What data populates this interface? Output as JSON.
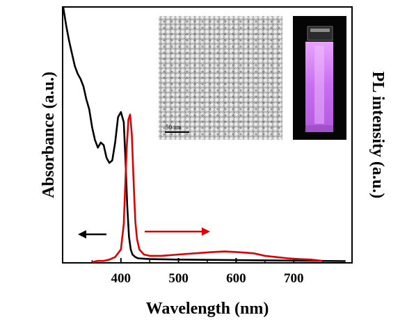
{
  "chart_data": {
    "type": "line",
    "xlabel": "Wavelength (nm)",
    "ylabel_left": "Absorbance (a.u.)",
    "ylabel_right": "PL intensity (a.u.)",
    "xlim": [
      300,
      800
    ],
    "ylim": [
      0,
      1
    ],
    "x_ticks": [
      400,
      500,
      600,
      700
    ],
    "y_ticks_labeled": false,
    "grid": false,
    "series": [
      {
        "color": "#000000",
        "axis": "left",
        "points": [
          [
            300,
            1.0
          ],
          [
            305,
            0.93
          ],
          [
            310,
            0.87
          ],
          [
            315,
            0.82
          ],
          [
            320,
            0.77
          ],
          [
            325,
            0.74
          ],
          [
            330,
            0.72
          ],
          [
            335,
            0.69
          ],
          [
            340,
            0.64
          ],
          [
            345,
            0.6
          ],
          [
            350,
            0.53
          ],
          [
            355,
            0.48
          ],
          [
            360,
            0.45
          ],
          [
            365,
            0.47
          ],
          [
            370,
            0.46
          ],
          [
            375,
            0.41
          ],
          [
            380,
            0.39
          ],
          [
            385,
            0.4
          ],
          [
            390,
            0.47
          ],
          [
            395,
            0.57
          ],
          [
            400,
            0.59
          ],
          [
            405,
            0.55
          ],
          [
            408,
            0.4
          ],
          [
            411,
            0.22
          ],
          [
            414,
            0.1
          ],
          [
            417,
            0.05
          ],
          [
            420,
            0.03
          ],
          [
            425,
            0.02
          ],
          [
            430,
            0.015
          ],
          [
            450,
            0.012
          ],
          [
            500,
            0.01
          ],
          [
            600,
            0.008
          ],
          [
            700,
            0.006
          ],
          [
            790,
            0.004
          ]
        ]
      },
      {
        "color": "#e00000",
        "axis": "right",
        "points": [
          [
            350,
            0.0
          ],
          [
            360,
            0.005
          ],
          [
            370,
            0.005
          ],
          [
            380,
            0.01
          ],
          [
            390,
            0.02
          ],
          [
            400,
            0.05
          ],
          [
            405,
            0.15
          ],
          [
            410,
            0.45
          ],
          [
            413,
            0.56
          ],
          [
            416,
            0.58
          ],
          [
            419,
            0.5
          ],
          [
            422,
            0.32
          ],
          [
            425,
            0.16
          ],
          [
            428,
            0.09
          ],
          [
            432,
            0.05
          ],
          [
            440,
            0.03
          ],
          [
            450,
            0.025
          ],
          [
            470,
            0.025
          ],
          [
            500,
            0.03
          ],
          [
            530,
            0.035
          ],
          [
            560,
            0.04
          ],
          [
            580,
            0.042
          ],
          [
            600,
            0.04
          ],
          [
            630,
            0.035
          ],
          [
            650,
            0.025
          ],
          [
            670,
            0.02
          ],
          [
            690,
            0.015
          ],
          [
            710,
            0.012
          ],
          [
            730,
            0.01
          ],
          [
            750,
            0.005
          ]
        ]
      }
    ],
    "annotations": [
      {
        "type": "arrow",
        "direction": "left",
        "color": "#000000",
        "points_to": "left axis"
      },
      {
        "type": "arrow",
        "direction": "right",
        "color": "#e00000",
        "points_to": "right axis"
      }
    ]
  },
  "insets": {
    "tem": {
      "scale_label": "50 nm"
    },
    "cuvette_photo": {
      "glow_color": "#c86cf0"
    }
  }
}
